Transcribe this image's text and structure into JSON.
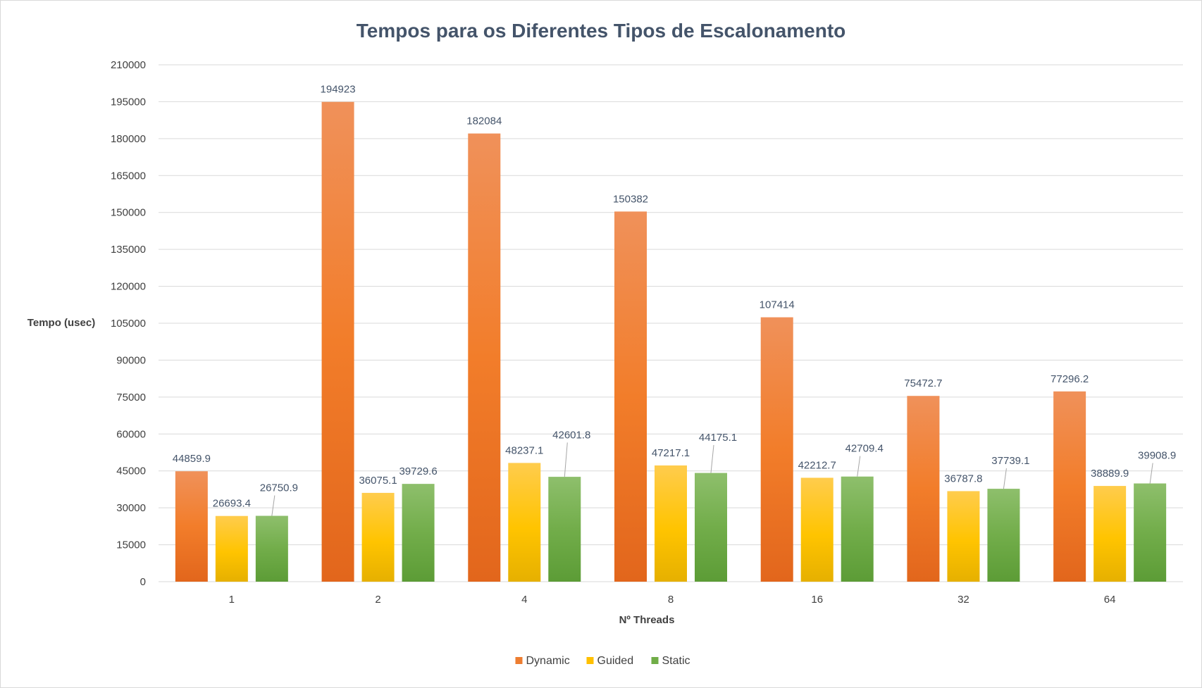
{
  "chart_data": {
    "type": "bar",
    "title": "Tempos para os Diferentes Tipos de Escalonamento",
    "xlabel": "Nº Threads",
    "ylabel": "Tempo (usec)",
    "categories": [
      "1",
      "2",
      "4",
      "8",
      "16",
      "32",
      "64"
    ],
    "yticks": [
      "0",
      "15000",
      "30000",
      "45000",
      "60000",
      "75000",
      "90000",
      "105000",
      "120000",
      "135000",
      "150000",
      "165000",
      "180000",
      "195000",
      "210000"
    ],
    "ylim": [
      0,
      210000
    ],
    "grid": true,
    "legend_position": "bottom",
    "series": [
      {
        "name": "Dynamic",
        "color": "#ed7d31",
        "values": [
          44859.9,
          194923,
          182084,
          150382,
          107414,
          75472.7,
          77296.2
        ],
        "labels": [
          "44859.9",
          "194923",
          "182084",
          "150382",
          "107414",
          "75472.7",
          "77296.2"
        ]
      },
      {
        "name": "Guided",
        "color": "#ffc000",
        "values": [
          26693.4,
          36075.1,
          48237.1,
          47217.1,
          42212.7,
          36787.8,
          38889.9
        ],
        "labels": [
          "26693.4",
          "36075.1",
          "48237.1",
          "47217.1",
          "42212.7",
          "36787.8",
          "38889.9"
        ]
      },
      {
        "name": "Static",
        "color": "#70ad47",
        "values": [
          26750.9,
          39729.6,
          42601.8,
          44175.1,
          42709.4,
          37739.1,
          39908.9
        ],
        "labels": [
          "26750.9",
          "39729.6",
          "42601.8",
          "44175.1",
          "42709.4",
          "37739.1",
          "39908.9"
        ]
      }
    ]
  }
}
